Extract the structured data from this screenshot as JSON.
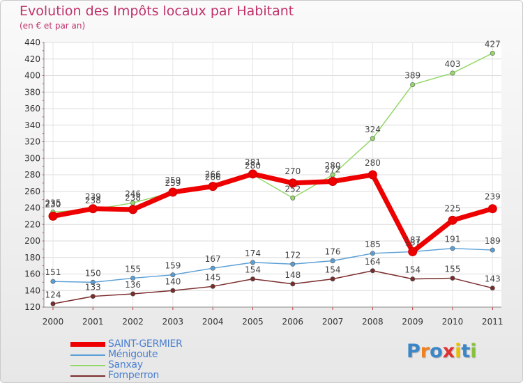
{
  "chart_data": {
    "type": "line",
    "title": "Evolution des Impôts locaux par Habitant",
    "subtitle": "(en € et par an)",
    "categories": [
      "2000",
      "2001",
      "2002",
      "2003",
      "2004",
      "2005",
      "2006",
      "2007",
      "2008",
      "2009",
      "2010",
      "2011"
    ],
    "ylim": [
      120,
      440
    ],
    "yticks": [
      "120",
      "140",
      "160",
      "180",
      "200",
      "220",
      "240",
      "260",
      "280",
      "300",
      "320",
      "340",
      "360",
      "380",
      "400",
      "420",
      "440"
    ],
    "grid": true,
    "series": [
      {
        "name": "Fomperron",
        "color": "#7a2b2b",
        "values": [
          124,
          133,
          136,
          140,
          145,
          154,
          148,
          154,
          164,
          154,
          155,
          143
        ]
      },
      {
        "name": "Ménigoute",
        "color": "#5a9fd6",
        "values": [
          151,
          150,
          155,
          159,
          167,
          174,
          172,
          176,
          185,
          187,
          191,
          189
        ]
      },
      {
        "name": "Sanxay",
        "color": "#94d86a",
        "values": [
          235,
          238,
          246,
          259,
          266,
          280,
          252,
          280,
          324,
          389,
          403,
          427
        ]
      },
      {
        "name": "SAINT-GERMIER",
        "color": "#ee0000",
        "values": [
          230,
          239,
          238,
          259,
          266,
          281,
          270,
          272,
          280,
          187,
          225,
          239
        ]
      }
    ],
    "legend": [
      "SAINT-GERMIER",
      "Ménigoute",
      "Sanxay",
      "Fomperron"
    ]
  },
  "logo": {
    "text": "Proxiti",
    "letters": [
      "P",
      "r",
      "o",
      "x",
      "i",
      "t",
      "i"
    ]
  },
  "colors": {
    "title": "#c0306a",
    "logo_letters": [
      "#3a86c8",
      "#f08020",
      "#3a86c8",
      "#e03030",
      "#e8c000",
      "#3a86c8",
      "#8ac040"
    ]
  }
}
